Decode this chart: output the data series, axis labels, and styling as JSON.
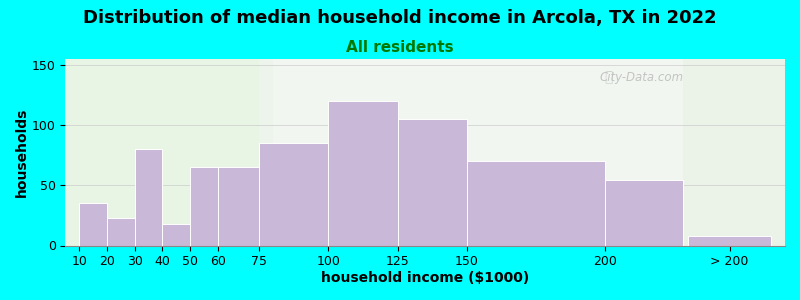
{
  "title": "Distribution of median household income in Arcola, TX in 2022",
  "subtitle": "All residents",
  "xlabel": "household income ($1000)",
  "ylabel": "households",
  "bar_lefts": [
    10,
    20,
    30,
    40,
    50,
    60,
    75,
    100,
    125,
    150,
    200,
    230
  ],
  "bar_rights": [
    20,
    30,
    40,
    50,
    60,
    75,
    100,
    125,
    150,
    200,
    228,
    260
  ],
  "bar_values": [
    35,
    23,
    80,
    18,
    65,
    65,
    85,
    120,
    105,
    70,
    54,
    8
  ],
  "bar_color": "#C9B8D8",
  "bar_edge_color": "#ffffff",
  "ylim": [
    0,
    155
  ],
  "yticks": [
    0,
    50,
    100,
    150
  ],
  "background_outer": "#00FFFF",
  "watermark": "City-Data.com",
  "title_fontsize": 13,
  "subtitle_fontsize": 11,
  "subtitle_color": "#007700",
  "axis_label_fontsize": 10,
  "tick_fontsize": 9,
  "xtick_positions": [
    10,
    20,
    30,
    40,
    50,
    60,
    75,
    100,
    125,
    150,
    200,
    245
  ],
  "xtick_labels": [
    "10",
    "20",
    "30",
    "40",
    "50",
    "60",
    "75",
    "100",
    "125",
    "150",
    "200",
    "> 200"
  ],
  "xlim": [
    5,
    265
  ]
}
